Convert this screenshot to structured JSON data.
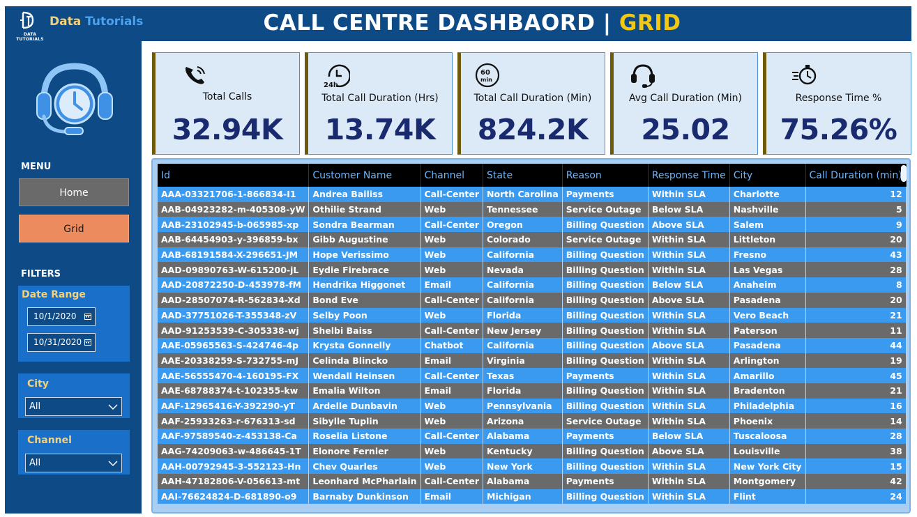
{
  "header": {
    "brand_small": "DATA TUTORIALS",
    "brand_part1": "Data",
    "brand_part2": "Tutorials",
    "title_main": "CALL CENTRE DASHBAORD | ",
    "title_accent": "GRID",
    "colors": {
      "header_bg": "#0d4a86",
      "accent_yellow": "#f2c812"
    }
  },
  "sidebar": {
    "menu_label": "MENU",
    "home_label": "Home",
    "grid_label": "Grid",
    "filters_label": "FILTERS",
    "date_range": {
      "title": "Date Range",
      "start": "10/1/2020",
      "end": "10/31/2020"
    },
    "city": {
      "title": "City",
      "value": "All"
    },
    "channel": {
      "title": "Channel",
      "value": "All"
    },
    "colors": {
      "active_nav": "#eb8b5e",
      "inactive_nav": "#6a6a6a"
    }
  },
  "kpis": [
    {
      "icon": "phone-icon",
      "label": "Total Calls",
      "value": "32.94K"
    },
    {
      "icon": "24h-clock-icon",
      "label": "Total Call Duration (Hrs)",
      "value": "13.74K"
    },
    {
      "icon": "60min-timer-icon",
      "label": "Total Call Duration (Min)",
      "value": "824.2K"
    },
    {
      "icon": "headset-icon",
      "label": "Avg Call Duration (Min)",
      "value": "25.02"
    },
    {
      "icon": "fast-stopwatch-icon",
      "label": "Response Time %",
      "value": "75.26%"
    }
  ],
  "table": {
    "columns": [
      "Id",
      "Customer Name",
      "Channel",
      "State",
      "Reason",
      "Response Time",
      "City",
      "Call Duration (min)"
    ],
    "rows": [
      [
        "AAA-03321706-1-866834-I1",
        "Andrea Bailiss",
        "Call-Center",
        "North Carolina",
        "Payments",
        "Within SLA",
        "Charlotte",
        "12"
      ],
      [
        "AAB-04923282-m-405308-yW",
        "Othilie Strand",
        "Web",
        "Tennessee",
        "Service Outage",
        "Below SLA",
        "Nashville",
        "5"
      ],
      [
        "AAB-23102945-b-065985-xp",
        "Sondra Bearman",
        "Call-Center",
        "Oregon",
        "Billing Question",
        "Above SLA",
        "Salem",
        "9"
      ],
      [
        "AAB-64454903-y-396859-bx",
        "Gibb Augustine",
        "Web",
        "Colorado",
        "Service Outage",
        "Within SLA",
        "Littleton",
        "20"
      ],
      [
        "AAB-68191584-X-296651-JM",
        "Hope Verissimo",
        "Web",
        "California",
        "Billing Question",
        "Within SLA",
        "Fresno",
        "43"
      ],
      [
        "AAD-09890763-W-615200-jL",
        "Eydie Firebrace",
        "Web",
        "Nevada",
        "Billing Question",
        "Within SLA",
        "Las Vegas",
        "28"
      ],
      [
        "AAD-20872250-D-453978-fM",
        "Hendrika Higgonet",
        "Email",
        "California",
        "Billing Question",
        "Below SLA",
        "Anaheim",
        "8"
      ],
      [
        "AAD-28507074-R-562834-Xd",
        "Bond Eve",
        "Call-Center",
        "California",
        "Billing Question",
        "Above SLA",
        "Pasadena",
        "20"
      ],
      [
        "AAD-37751026-T-355348-zV",
        "Selby Poon",
        "Web",
        "Florida",
        "Billing Question",
        "Within SLA",
        "Vero Beach",
        "21"
      ],
      [
        "AAD-91253539-C-305338-wj",
        "Shelbi Baiss",
        "Call-Center",
        "New Jersey",
        "Billing Question",
        "Within SLA",
        "Paterson",
        "11"
      ],
      [
        "AAE-05965563-S-424746-4p",
        "Krysta Gonnelly",
        "Chatbot",
        "California",
        "Billing Question",
        "Above SLA",
        "Pasadena",
        "44"
      ],
      [
        "AAE-20338259-S-732755-mJ",
        "Celinda Blincko",
        "Email",
        "Virginia",
        "Billing Question",
        "Within SLA",
        "Arlington",
        "19"
      ],
      [
        "AAE-56555470-4-160195-FX",
        "Wendall Heinsen",
        "Call-Center",
        "Texas",
        "Payments",
        "Within SLA",
        "Amarillo",
        "45"
      ],
      [
        "AAE-68788374-t-102355-kw",
        "Emalia Wilton",
        "Email",
        "Florida",
        "Billing Question",
        "Within SLA",
        "Bradenton",
        "21"
      ],
      [
        "AAF-12965416-Y-392290-yT",
        "Ardelle Dunbavin",
        "Web",
        "Pennsylvania",
        "Billing Question",
        "Within SLA",
        "Philadelphia",
        "16"
      ],
      [
        "AAF-25933263-r-676313-sd",
        "Sibylle Tuplin",
        "Web",
        "Arizona",
        "Service Outage",
        "Within SLA",
        "Phoenix",
        "14"
      ],
      [
        "AAF-97589540-z-453138-Ca",
        "Roselia Listone",
        "Call-Center",
        "Alabama",
        "Payments",
        "Below SLA",
        "Tuscaloosa",
        "28"
      ],
      [
        "AAG-74209063-w-486645-1T",
        "Elonore Fernier",
        "Web",
        "Kentucky",
        "Billing Question",
        "Above SLA",
        "Louisville",
        "38"
      ],
      [
        "AAH-00792945-3-552123-Hn",
        "Chev Quarles",
        "Web",
        "New York",
        "Billing Question",
        "Within SLA",
        "New York City",
        "15"
      ],
      [
        "AAH-47182806-V-056613-mt",
        "Leonhard McPharlain",
        "Call-Center",
        "Alabama",
        "Payments",
        "Within SLA",
        "Montgomery",
        "42"
      ],
      [
        "AAI-76624824-D-681890-o9",
        "Barnaby Dunkinson",
        "Email",
        "Michigan",
        "Billing Question",
        "Within SLA",
        "Flint",
        "24"
      ]
    ],
    "colors": {
      "row_odd": "#3a9af0",
      "row_even": "#6a6a6a",
      "header_bg": "#000000",
      "header_text": "#6db4f7"
    }
  }
}
